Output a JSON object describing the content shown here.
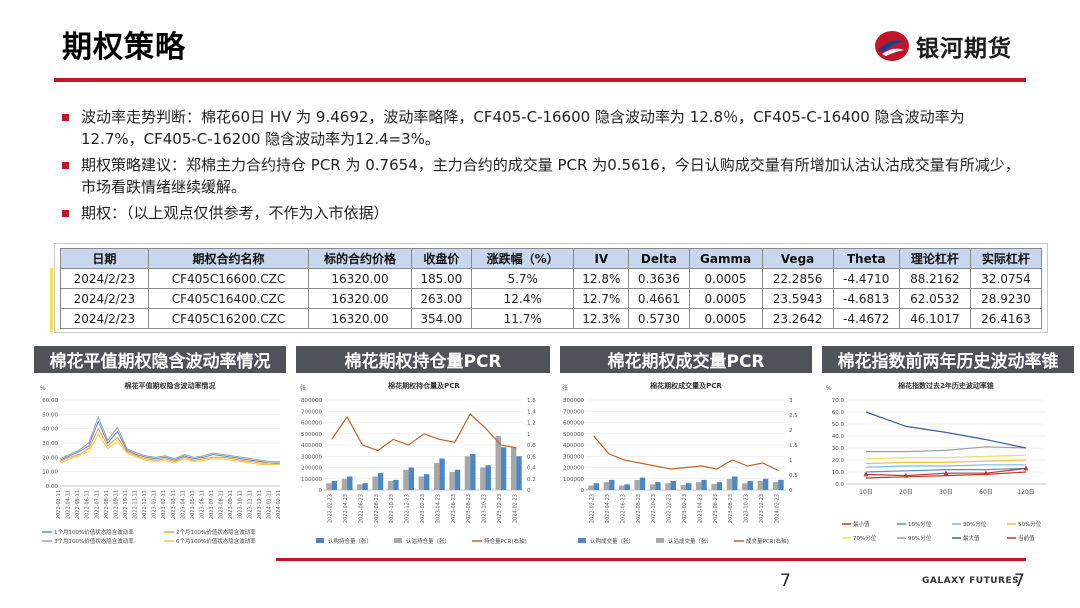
{
  "header": {
    "title": "期权策略",
    "logo_text": "银河期货"
  },
  "bullets": [
    "波动率走势判断：棉花60日 HV 为 9.4692，波动率略降，CF405-C-16600 隐含波动率为 12.8％，CF405-C-16400 隐含波动率为 12.7%，CF405-C-16200 隐含波动率为12.4=3%。",
    "期权策略建议：郑棉主力合约持仓 PCR 为 0.7654，主力合约的成交量 PCR 为0.5616，今日认购成交量有所增加认沽认沽成交量有所减少，市场看跌情绪继续缓解。",
    "期权：（以上观点仅供参考，不作为入市依据）"
  ],
  "table": {
    "headers": [
      "日期",
      "期权合约名称",
      "标的合约价格",
      "收盘价",
      "涨跌幅（%）",
      "IV",
      "Delta",
      "Gamma",
      "Vega",
      "Theta",
      "理论杠杆",
      "实际杠杆"
    ],
    "rows": [
      [
        "2024/2/23",
        "CF405C16600.CZC",
        "16320.00",
        "185.00",
        "5.7%",
        "12.8%",
        "0.3636",
        "0.0005",
        "22.2856",
        "-4.4710",
        "88.2162",
        "32.0754"
      ],
      [
        "2024/2/23",
        "CF405C16400.CZC",
        "16320.00",
        "263.00",
        "12.4%",
        "12.7%",
        "0.4661",
        "0.0005",
        "23.5943",
        "-4.6813",
        "62.0532",
        "28.9230"
      ],
      [
        "2024/2/23",
        "CF405C16200.CZC",
        "16320.00",
        "354.00",
        "11.7%",
        "12.3%",
        "0.5730",
        "0.0005",
        "23.2642",
        "-4.4672",
        "46.1017",
        "26.4163"
      ]
    ]
  },
  "panels": [
    {
      "label": "棉花平值期权隐含波动率情况"
    },
    {
      "label": "棉花期权持仓量PCR"
    },
    {
      "label": "棉花期权成交量PCR"
    },
    {
      "label": "棉花指数前两年历史波动率锥"
    }
  ],
  "chart_data": [
    {
      "type": "line",
      "title": "棉花平值期权隐含波动率情况",
      "ylabel": "%",
      "ylim": [
        0,
        60
      ],
      "yticks": [
        "60.00",
        "50.00",
        "40.00",
        "30.00",
        "20.00",
        "10.00",
        "0.00"
      ],
      "x": [
        "2022-03-11",
        "2022-04-11",
        "2022-05-11",
        "2022-06-11",
        "2022-07-11",
        "2022-08-11",
        "2022-09-11",
        "2022-10-11",
        "2022-11-11",
        "2022-12-11",
        "2023-01-11",
        "2023-02-11",
        "2023-03-11",
        "2023-04-11",
        "2023-05-11",
        "2023-06-11",
        "2023-07-11",
        "2023-08-11",
        "2023-09-11",
        "2023-10-11",
        "2023-11-11",
        "2023-12-11",
        "2024-01-11",
        "2024-02-11"
      ],
      "series": [
        {
          "name": "1个月100%价值状态隐含波动率",
          "color": "#5b8bd0",
          "values": [
            18,
            21,
            24,
            28,
            45,
            30,
            38,
            25,
            22,
            20,
            19,
            20,
            18,
            21,
            19,
            20,
            22,
            21,
            20,
            19,
            18,
            17,
            16,
            16
          ]
        },
        {
          "name": "2个月100%价值状态隐含波动率",
          "color": "#f0a030",
          "values": [
            17,
            20,
            22,
            26,
            40,
            28,
            34,
            24,
            21,
            19,
            18,
            19,
            17,
            20,
            18,
            19,
            20,
            20,
            19,
            18,
            17,
            16,
            16,
            15
          ]
        },
        {
          "name": "3个月100%价值状态隐含波动率",
          "color": "#a0a0a0",
          "values": [
            19,
            22,
            25,
            30,
            48,
            32,
            41,
            26,
            23,
            21,
            20,
            21,
            19,
            22,
            20,
            21,
            23,
            22,
            21,
            20,
            19,
            18,
            17,
            17
          ]
        },
        {
          "name": "6个月100%价值状态隐含波动率",
          "color": "#f5c842",
          "values": [
            16,
            19,
            21,
            24,
            36,
            26,
            31,
            23,
            20,
            18,
            17,
            18,
            16,
            19,
            17,
            18,
            19,
            19,
            18,
            17,
            16,
            15,
            15,
            15
          ]
        }
      ]
    },
    {
      "type": "bar",
      "title": "棉花期权持仓量及PCR",
      "ylabel": "张",
      "ylim": [
        0,
        800000
      ],
      "y2lim": [
        0,
        1.6
      ],
      "yticks": [
        "800000",
        "700000",
        "600000",
        "500000",
        "400000",
        "300000",
        "200000",
        "100000",
        "0"
      ],
      "y2ticks": [
        "1.6",
        "1.4",
        "1.2",
        "1",
        "0.8",
        "0.6",
        "0.4",
        "0.2",
        "0"
      ],
      "x": [
        "2022-02-23",
        "2022-04-23",
        "2022-06-23",
        "2022-08-23",
        "2022-10-23",
        "2022-12-23",
        "2023-02-23",
        "2023-04-23",
        "2023-06-23",
        "2023-08-23",
        "2023-10-23",
        "2023-12-23",
        "2024-02-23"
      ],
      "series": [
        {
          "name": "认购持仓量（张）",
          "color": "#4a86c8",
          "values": [
            80000,
            120000,
            60000,
            150000,
            90000,
            200000,
            140000,
            280000,
            180000,
            320000,
            220000,
            380000,
            300000
          ]
        },
        {
          "name": "认沽持仓量（张）",
          "color": "#a8a8a8",
          "values": [
            60000,
            100000,
            50000,
            120000,
            80000,
            180000,
            120000,
            240000,
            160000,
            300000,
            200000,
            480000,
            380000
          ]
        },
        {
          "name": "持仓量PCR(右轴)",
          "color": "#c0652a",
          "values": [
            0.9,
            1.3,
            0.8,
            0.7,
            0.9,
            0.8,
            1.0,
            0.9,
            0.85,
            1.35,
            1.1,
            0.8,
            0.75
          ]
        }
      ]
    },
    {
      "type": "bar",
      "title": "棉花期权成交量及PCR",
      "ylabel": "张",
      "ylim": [
        0,
        800000
      ],
      "y2lim": [
        0,
        3
      ],
      "yticks": [
        "800000",
        "700000",
        "600000",
        "500000",
        "400000",
        "300000",
        "200000",
        "100000",
        "0"
      ],
      "y2ticks": [
        "3",
        "2.5",
        "2",
        "1.5",
        "1",
        "0.5",
        "0"
      ],
      "x": [
        "2022-02-23",
        "2022-04-23",
        "2022-06-23",
        "2022-08-23",
        "2022-10-23",
        "2022-12-23",
        "2023-02-23",
        "2023-04-23",
        "2023-06-23",
        "2023-08-23",
        "2023-10-23",
        "2023-12-23",
        "2024-02-23"
      ],
      "series": [
        {
          "name": "认购成交量（张）",
          "color": "#4a86c8",
          "values": [
            60000,
            90000,
            50000,
            110000,
            70000,
            80000,
            60000,
            90000,
            70000,
            120000,
            80000,
            100000,
            90000
          ]
        },
        {
          "name": "认沽成交量（张）",
          "color": "#a8a8a8",
          "values": [
            40000,
            70000,
            40000,
            90000,
            50000,
            60000,
            45000,
            70000,
            55000,
            100000,
            60000,
            80000,
            70000
          ]
        },
        {
          "name": "成交量PCR(右轴)",
          "color": "#c0652a",
          "values": [
            1.8,
            1.2,
            1.0,
            0.9,
            0.8,
            0.7,
            0.75,
            0.8,
            0.7,
            1.0,
            0.8,
            0.9,
            0.65
          ]
        }
      ]
    },
    {
      "type": "line",
      "title": "棉花指数过去2年历史波动率锥",
      "ylabel": "%",
      "ylim": [
        0,
        70
      ],
      "yticks": [
        "70.0",
        "60.0",
        "50.0",
        "40.0",
        "30.0",
        "20.0",
        "10.0",
        "0.0"
      ],
      "categories": [
        "10日",
        "20日",
        "30日",
        "60日",
        "120日"
      ],
      "series": [
        {
          "name": "最小值",
          "color": "#c0392b",
          "values": [
            5,
            6,
            7,
            8,
            10
          ]
        },
        {
          "name": "10%分位",
          "color": "#5b8bd0",
          "values": [
            10,
            11,
            12,
            12,
            13
          ]
        },
        {
          "name": "30%分位",
          "color": "#7fb5e6",
          "values": [
            14,
            15,
            15,
            16,
            16
          ]
        },
        {
          "name": "50%分位",
          "color": "#f0c040",
          "values": [
            17,
            18,
            18,
            19,
            20
          ]
        },
        {
          "name": "70%分位",
          "color": "#e8e060",
          "values": [
            21,
            22,
            22,
            23,
            24
          ]
        },
        {
          "name": "90%分位",
          "color": "#a0a0a0",
          "values": [
            27,
            27,
            28,
            31,
            30
          ]
        },
        {
          "name": "最大值",
          "color": "#3a5f9f",
          "values": [
            60,
            48,
            43,
            37,
            30
          ]
        },
        {
          "name": "当前值",
          "color": "#c0392b",
          "values": [
            8,
            7,
            9,
            9,
            13
          ]
        }
      ]
    }
  ],
  "footer": {
    "page": "7",
    "brand": "GALAXY FUTURES",
    "page2": "7"
  }
}
